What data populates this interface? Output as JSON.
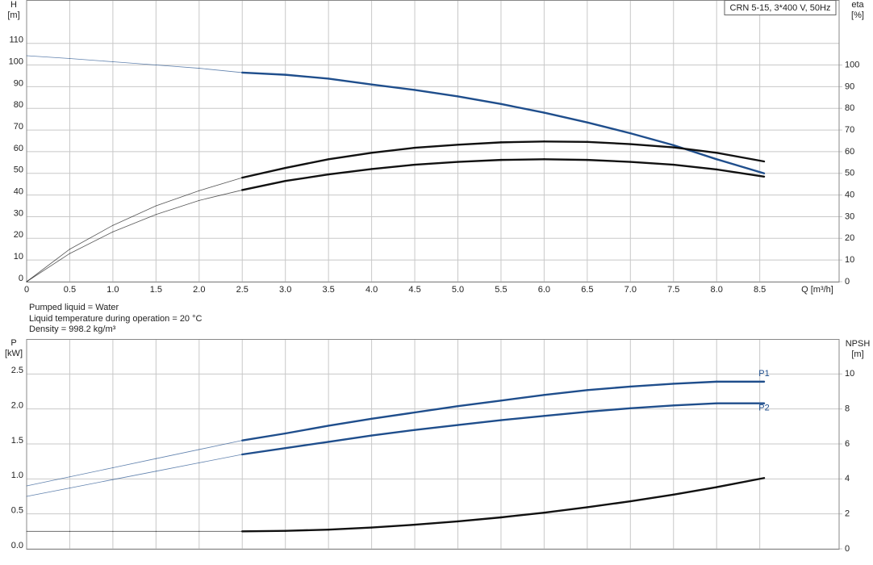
{
  "chart_data": [
    {
      "type": "line",
      "box_label": "CRN 5-15, 3*400 V, 50Hz",
      "ylabel": "H",
      "yunit": "[m]",
      "y2label": "eta",
      "y2unit": "[%]",
      "xlabel": "Q [m³/h]",
      "x": [
        0,
        0.5,
        1,
        1.5,
        2,
        2.5,
        3,
        3.5,
        4,
        4.5,
        5,
        5.5,
        6,
        6.5,
        7,
        7.5,
        8,
        8.55
      ],
      "xlim": [
        0,
        9.42
      ],
      "xticks": [
        0,
        0.5,
        {
          "value": 1,
          "label": "1.0"
        },
        1.5,
        {
          "value": 2,
          "label": "2.0"
        },
        2.5,
        {
          "value": 3,
          "label": "3.0"
        },
        3.5,
        {
          "value": 4,
          "label": "4.0"
        },
        4.5,
        {
          "value": 5,
          "label": "5.0"
        },
        5.5,
        {
          "value": 6,
          "label": "6.0"
        },
        6.5,
        {
          "value": 7,
          "label": "7.0"
        },
        7.5,
        {
          "value": 8,
          "label": "8.0"
        },
        8.5
      ],
      "ylim": [
        0,
        130
      ],
      "yticks": [
        0,
        10,
        20,
        30,
        40,
        50,
        60,
        70,
        80,
        90,
        100,
        110
      ],
      "y2lim": [
        0,
        130
      ],
      "y2ticks": [
        0,
        10,
        20,
        30,
        40,
        50,
        60,
        70,
        80,
        90,
        100
      ],
      "grid": true,
      "thick_from_x": 2.5,
      "series": [
        {
          "color": "#1f4e8c",
          "values": [
            104.3,
            103,
            101.5,
            100,
            98.5,
            96.5,
            95.5,
            93.7,
            91,
            88.5,
            85.5,
            82,
            78,
            73.5,
            68.5,
            63,
            56.5,
            50
          ]
        },
        {
          "color": "#111111",
          "axis": "y2",
          "values": [
            0,
            15,
            26,
            35,
            42,
            48,
            52.5,
            56.5,
            59.5,
            61.8,
            63.2,
            64.3,
            64.7,
            64.5,
            63.5,
            62,
            59.5,
            55.5
          ]
        },
        {
          "color": "#111111",
          "axis": "y2",
          "values": [
            0,
            13,
            23,
            31,
            37.5,
            42.3,
            46.5,
            49.5,
            52,
            54,
            55.3,
            56.2,
            56.5,
            56.2,
            55.3,
            54,
            51.8,
            48.5
          ]
        }
      ]
    },
    {
      "type": "line",
      "ylabel": "P",
      "yunit": "[kW]",
      "y2label": "NPSH",
      "y2unit": "[m]",
      "x": [
        0,
        0.5,
        1,
        1.5,
        2,
        2.5,
        3,
        3.5,
        4,
        4.5,
        5,
        5.5,
        6,
        6.5,
        7,
        7.5,
        8,
        8.55
      ],
      "xlim": [
        0,
        9.42
      ],
      "ylim": [
        0,
        3.0
      ],
      "yticks": [
        {
          "value": 0,
          "label": "0.0"
        },
        0.5,
        {
          "value": 1,
          "label": "1.0"
        },
        1.5,
        {
          "value": 2,
          "label": "2.0"
        },
        2.5
      ],
      "y2lim": [
        0,
        12
      ],
      "y2ticks": [
        0,
        2,
        4,
        6,
        8,
        10
      ],
      "grid": true,
      "thick_from_x": 2.5,
      "series": [
        {
          "name": "P1",
          "color": "#1f4e8c",
          "values": [
            0.9,
            1.03,
            1.16,
            1.29,
            1.42,
            1.55,
            1.65,
            1.76,
            1.86,
            1.95,
            2.04,
            2.12,
            2.2,
            2.27,
            2.32,
            2.36,
            2.39,
            2.39
          ]
        },
        {
          "name": "P2",
          "color": "#1f4e8c",
          "values": [
            0.75,
            0.87,
            0.99,
            1.11,
            1.23,
            1.35,
            1.44,
            1.53,
            1.62,
            1.7,
            1.77,
            1.84,
            1.9,
            1.96,
            2.01,
            2.05,
            2.08,
            2.08
          ]
        },
        {
          "color": "#111111",
          "axis": "y2",
          "values": [
            1.0,
            1.0,
            1.0,
            1.0,
            1.0,
            1.0,
            1.03,
            1.1,
            1.22,
            1.38,
            1.57,
            1.8,
            2.07,
            2.38,
            2.72,
            3.1,
            3.53,
            4.05
          ]
        }
      ]
    }
  ],
  "notes": [
    "Pumped liquid = Water",
    "Liquid temperature during operation = 20 °C",
    "Density = 998.2 kg/m³"
  ]
}
